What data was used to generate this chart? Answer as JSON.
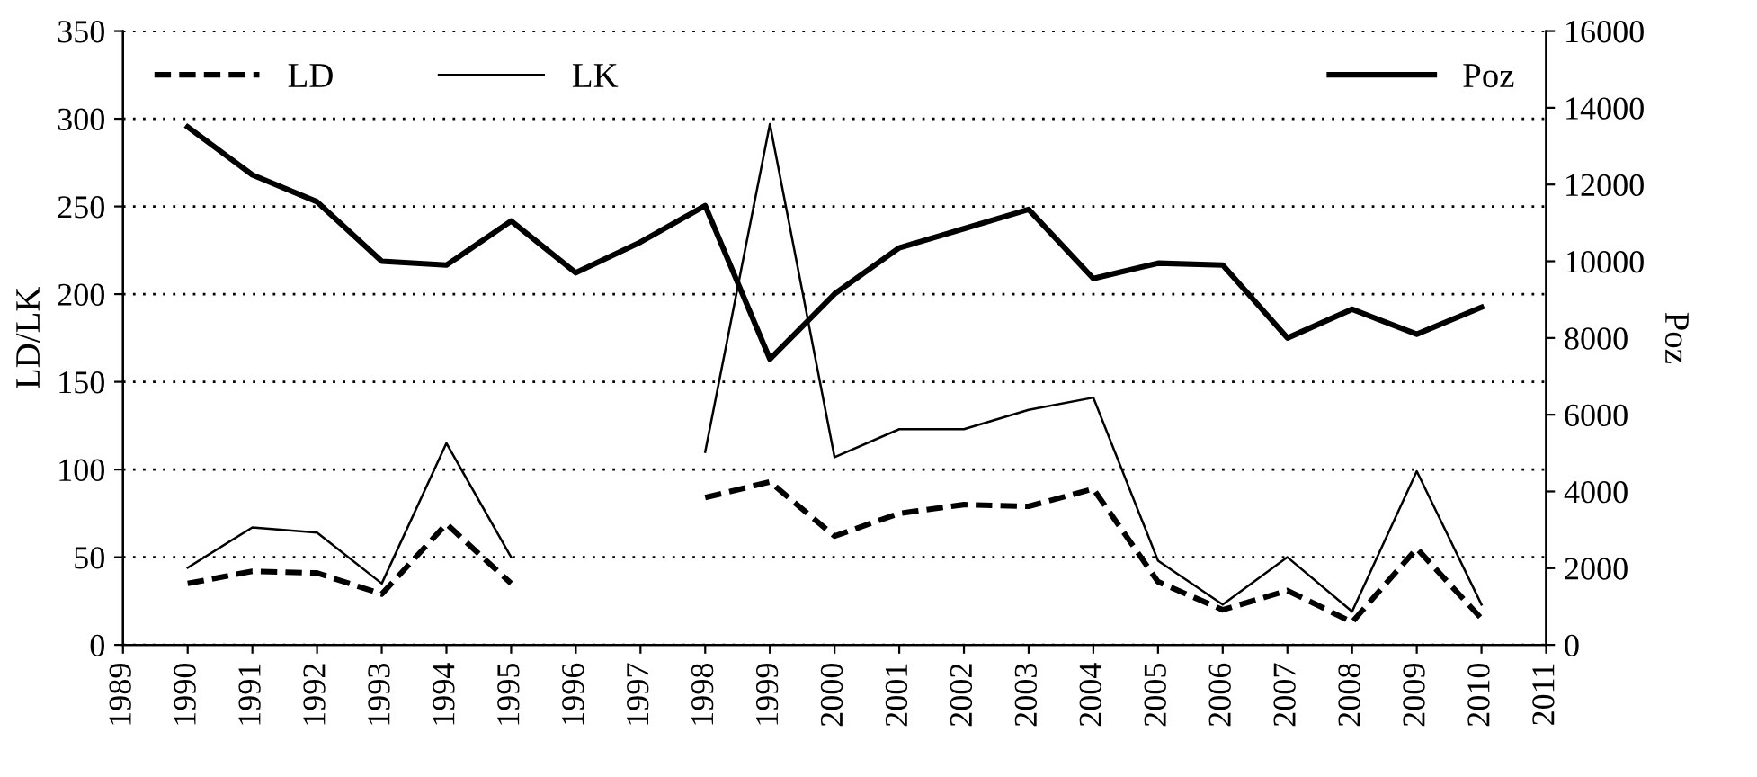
{
  "chart_data": {
    "type": "line",
    "ylabel": "LD/LK",
    "y2label": "Poz",
    "x": [
      1990,
      1991,
      1992,
      1993,
      1994,
      1995,
      1996,
      1997,
      1998,
      1999,
      2000,
      2001,
      2002,
      2003,
      2004,
      2005,
      2006,
      2007,
      2008,
      2009,
      2010
    ],
    "series": [
      {
        "name": "LD",
        "color": "#000000",
        "line_style": "dashed",
        "values": [
          35,
          42,
          41,
          29,
          69,
          35,
          null,
          null,
          84,
          93,
          62,
          75,
          80,
          79,
          89,
          36,
          20,
          31,
          13,
          55,
          15
        ]
      },
      {
        "name": "LK",
        "color": "#000000",
        "line_style": "solid",
        "values": [
          44,
          67,
          64,
          35,
          115,
          50,
          null,
          null,
          110,
          297,
          107,
          123,
          123,
          134,
          141,
          48,
          23,
          50,
          19,
          99,
          23
        ]
      },
      {
        "name": "Poz",
        "color": "#000000",
        "line_style": "solid",
        "axis": "y2",
        "values": [
          13500,
          12250,
          11550,
          10000,
          9900,
          11050,
          9700,
          10500,
          11450,
          7450,
          9150,
          10350,
          10850,
          11350,
          9550,
          9950,
          9900,
          8000,
          8750,
          8100,
          8800
        ]
      }
    ],
    "xlim": [
      1989,
      2011
    ],
    "xticks": [
      1989,
      1990,
      1991,
      1992,
      1993,
      1994,
      1995,
      1996,
      1997,
      1998,
      1999,
      2000,
      2001,
      2002,
      2003,
      2004,
      2005,
      2006,
      2007,
      2008,
      2009,
      2010,
      2011
    ],
    "ylim": [
      0,
      350
    ],
    "yticks": [
      0,
      50,
      100,
      150,
      200,
      250,
      300,
      350
    ],
    "y2lim": [
      0,
      16000
    ],
    "y2ticks": [
      0,
      2000,
      4000,
      6000,
      8000,
      10000,
      12000,
      14000,
      16000
    ],
    "grid": "y",
    "legend": "top",
    "marker": "none"
  }
}
